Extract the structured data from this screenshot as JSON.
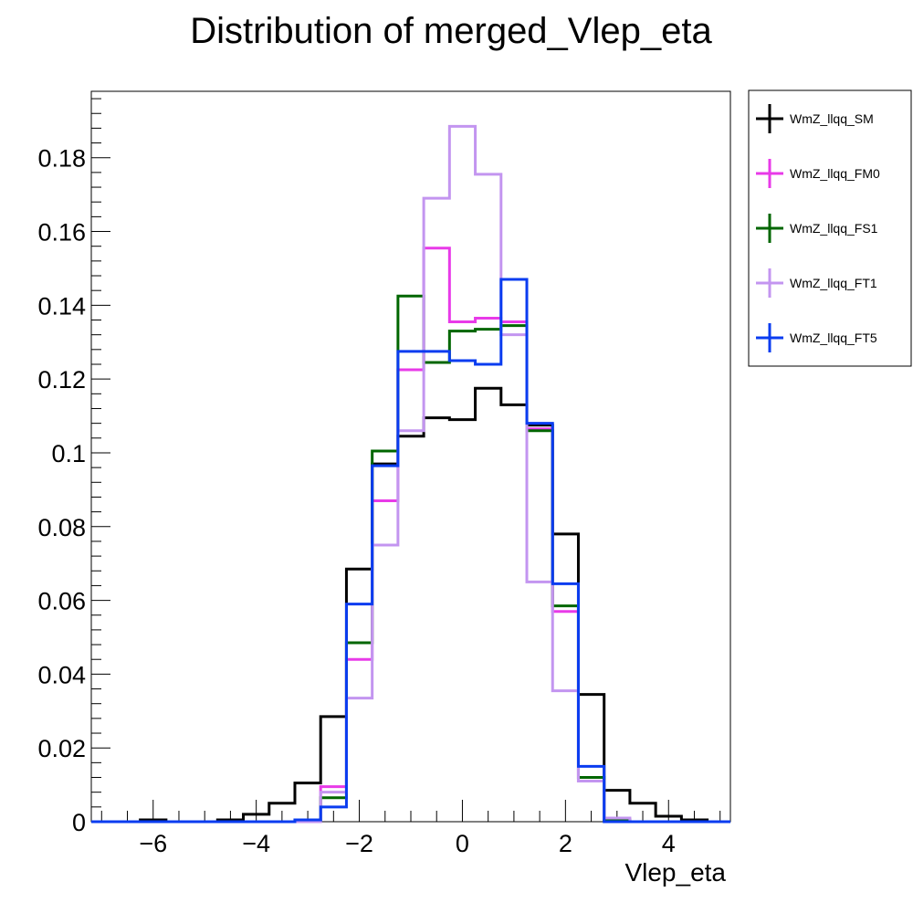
{
  "chart_data": {
    "type": "histogram-step",
    "title": "Distribution of merged_Vlep_eta",
    "xlabel": "Vlep_eta",
    "ylabel": "",
    "xlim": [
      -7.2,
      5.2
    ],
    "ylim": [
      0,
      0.198
    ],
    "grid": false,
    "legend_position": "right-outside",
    "x_ticks": [
      -6,
      -4,
      -2,
      0,
      2,
      4
    ],
    "x_tick_labels": [
      "−6",
      "−4",
      "−2",
      "0",
      "2",
      "4"
    ],
    "y_ticks": [
      0,
      0.02,
      0.04,
      0.06,
      0.08,
      0.1,
      0.12,
      0.14,
      0.16,
      0.18
    ],
    "y_tick_labels": [
      "0",
      "0.02",
      "0.04",
      "0.06",
      "0.08",
      "0.1",
      "0.12",
      "0.14",
      "0.16",
      "0.18"
    ],
    "bin_edges": [
      -6.25,
      -5.75,
      -5.25,
      -4.75,
      -4.25,
      -3.75,
      -3.25,
      -2.75,
      -2.25,
      -1.75,
      -1.25,
      -0.75,
      -0.25,
      0.25,
      0.75,
      1.25,
      1.75,
      2.25,
      2.75,
      3.25,
      3.75,
      4.25,
      4.75
    ],
    "series": [
      {
        "name": "WmZ_llqq_SM",
        "color": "#000000",
        "values": [
          0.0005,
          0,
          0,
          0.0005,
          0.002,
          0.005,
          0.0105,
          0.0285,
          0.0685,
          0.097,
          0.1045,
          0.1095,
          0.109,
          0.1175,
          0.113,
          0.1075,
          0.078,
          0.0345,
          0.0085,
          0.005,
          0.0015,
          0.0005
        ]
      },
      {
        "name": "WmZ_llqq_FM0",
        "color": "#e83ae8",
        "values": [
          0,
          0,
          0,
          0,
          0,
          0,
          0.0005,
          0.0095,
          0.044,
          0.087,
          0.1225,
          0.1555,
          0.1355,
          0.1365,
          0.1355,
          0.1065,
          0.057,
          0.011,
          0.0005,
          0,
          0,
          0
        ]
      },
      {
        "name": "WmZ_llqq_FS1",
        "color": "#006600",
        "values": [
          0,
          0,
          0,
          0,
          0,
          0,
          0.0005,
          0.0065,
          0.0485,
          0.1005,
          0.1425,
          0.1245,
          0.133,
          0.1335,
          0.1345,
          0.106,
          0.0585,
          0.012,
          0.0005,
          0,
          0,
          0
        ]
      },
      {
        "name": "WmZ_llqq_FT1",
        "color": "#c395f0",
        "values": [
          0,
          0,
          0,
          0,
          0,
          0,
          0,
          0.008,
          0.0335,
          0.075,
          0.106,
          0.169,
          0.1885,
          0.1755,
          0.132,
          0.065,
          0.0355,
          0.011,
          0.001,
          0,
          0,
          0
        ]
      },
      {
        "name": "WmZ_llqq_FT5",
        "color": "#0a3cf0",
        "values": [
          0,
          0,
          0,
          0,
          0,
          0,
          0.0005,
          0.004,
          0.059,
          0.0965,
          0.1275,
          0.1275,
          0.125,
          0.124,
          0.147,
          0.108,
          0.0645,
          0.015,
          0,
          0,
          0,
          0
        ]
      }
    ]
  }
}
